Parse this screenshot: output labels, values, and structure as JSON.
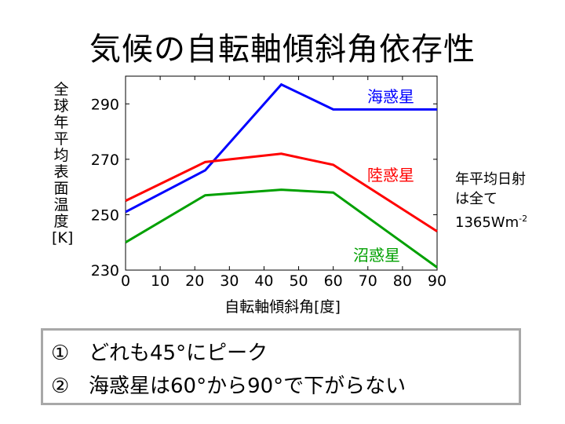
{
  "title": "気候の自転軸傾斜角依存性",
  "chart_data": {
    "type": "line",
    "x": [
      0,
      23,
      45,
      60,
      90
    ],
    "series": [
      {
        "name": "海惑星",
        "color": "#0000ff",
        "values": [
          251,
          266,
          297,
          288,
          288
        ]
      },
      {
        "name": "陸惑星",
        "color": "#ff0000",
        "values": [
          255,
          269,
          272,
          268,
          244
        ]
      },
      {
        "name": "沼惑星",
        "color": "#00a000",
        "values": [
          240,
          257,
          259,
          258,
          231
        ]
      }
    ],
    "xlabel": "自転軸傾斜角[度]",
    "ylabel": "全球年平均表面温度[K]",
    "xticks": [
      "0",
      "10",
      "20",
      "30",
      "40",
      "50",
      "60",
      "70",
      "80",
      "90"
    ],
    "yticks": [
      "230",
      "250",
      "270",
      "290"
    ],
    "xlim": [
      0,
      90
    ],
    "ylim": [
      230,
      300
    ],
    "grid": false
  },
  "side_note": {
    "line1": "年平均日射",
    "line2": "は全て",
    "line3": "1365Wm",
    "line3_sup": "-2"
  },
  "notes": [
    {
      "marker": "①",
      "text": "どれも45°にピーク"
    },
    {
      "marker": "②",
      "text": "海惑星は60°から90°で下がらない"
    }
  ]
}
